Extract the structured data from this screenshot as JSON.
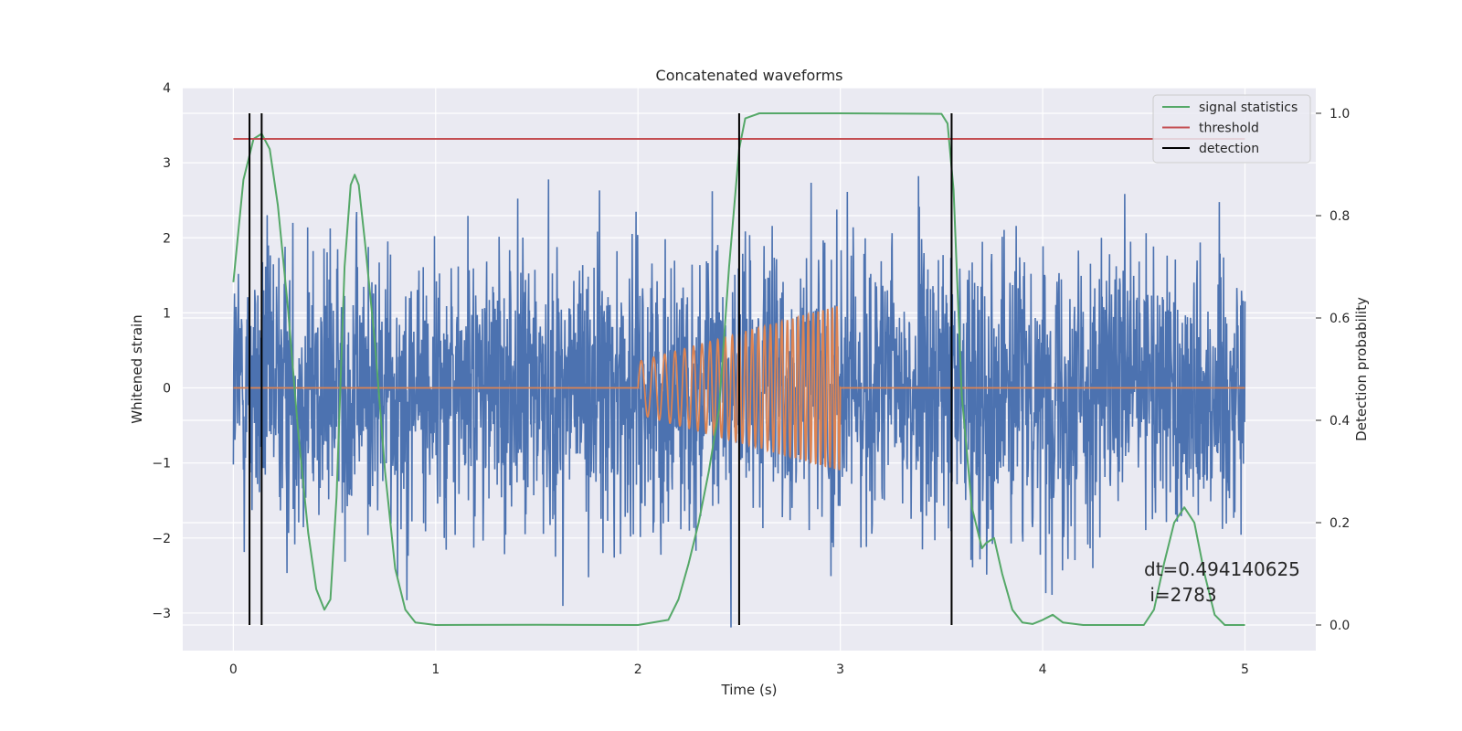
{
  "chart_data": {
    "type": "line",
    "title": "Concatenated waveforms",
    "xlabel": "Time (s)",
    "ylabel": "Whitened strain",
    "y2label": "Detection probability",
    "xlim": [
      -0.25,
      5.35
    ],
    "ylim": [
      -3.5,
      4.0
    ],
    "y2lim": [
      -0.05,
      1.05
    ],
    "xticks": [
      0,
      1,
      2,
      3,
      4,
      5
    ],
    "xtick_labels": [
      "0",
      "1",
      "2",
      "3",
      "4",
      "5"
    ],
    "yticks": [
      -3,
      -2,
      -1,
      0,
      1,
      2,
      3,
      4
    ],
    "ytick_labels": [
      "−3",
      "−2",
      "−1",
      "0",
      "1",
      "2",
      "3",
      "4"
    ],
    "y2ticks": [
      0.0,
      0.2,
      0.4,
      0.6,
      0.8,
      1.0
    ],
    "y2tick_labels": [
      "0.0",
      "0.2",
      "0.4",
      "0.6",
      "0.8",
      "1.0"
    ],
    "grid": true,
    "legend_position": "top-right",
    "noise": {
      "x_range": [
        0,
        5
      ],
      "amplitude_sd": 0.95,
      "color": "#4c72b0"
    },
    "injected_signal": {
      "start": 2.0,
      "end": 3.0,
      "start_amplitude": 0.35,
      "end_amplitude": 1.1,
      "start_freq_hz": 15,
      "end_freq_hz": 45,
      "color": "#dd8452"
    },
    "series": [
      {
        "name": "signal statistics",
        "axis": "right",
        "color": "#55a868",
        "x": [
          0.0,
          0.05,
          0.1,
          0.14,
          0.18,
          0.22,
          0.27,
          0.32,
          0.37,
          0.41,
          0.45,
          0.48,
          0.51,
          0.55,
          0.58,
          0.6,
          0.62,
          0.65,
          0.7,
          0.75,
          0.8,
          0.85,
          0.9,
          1.0,
          1.5,
          2.0,
          2.15,
          2.2,
          2.25,
          2.3,
          2.35,
          2.4,
          2.45,
          2.5,
          2.53,
          2.6,
          3.0,
          3.5,
          3.53,
          3.56,
          3.6,
          3.65,
          3.7,
          3.72,
          3.76,
          3.8,
          3.85,
          3.9,
          3.95,
          4.0,
          4.05,
          4.1,
          4.2,
          4.5,
          4.55,
          4.6,
          4.65,
          4.7,
          4.75,
          4.8,
          4.85,
          4.9,
          5.0
        ],
        "y": [
          0.67,
          0.87,
          0.95,
          0.96,
          0.93,
          0.82,
          0.62,
          0.38,
          0.18,
          0.07,
          0.03,
          0.05,
          0.25,
          0.7,
          0.86,
          0.88,
          0.86,
          0.75,
          0.55,
          0.3,
          0.11,
          0.03,
          0.005,
          0.0,
          0.0005,
          0.0,
          0.01,
          0.05,
          0.12,
          0.2,
          0.3,
          0.42,
          0.7,
          0.93,
          0.99,
          1.0,
          1.0,
          0.999,
          0.98,
          0.85,
          0.45,
          0.23,
          0.15,
          0.16,
          0.17,
          0.1,
          0.03,
          0.005,
          0.002,
          0.01,
          0.02,
          0.005,
          0.0,
          0.0,
          0.03,
          0.12,
          0.2,
          0.23,
          0.2,
          0.1,
          0.02,
          0.0,
          0.0
        ]
      },
      {
        "name": "threshold",
        "axis": "right",
        "color": "#c44e52",
        "x": [
          0.0,
          5.0
        ],
        "y": [
          0.95,
          0.95
        ]
      },
      {
        "name": "detection",
        "axis": "right",
        "color": "#000000",
        "type": "vlines",
        "x": [
          0.08,
          0.14,
          2.5,
          3.55
        ],
        "ymin": 0.0,
        "ymax": 1.0
      }
    ],
    "annotation": {
      "line1": "dt=0.494140625",
      "line2": " i=2783"
    }
  }
}
